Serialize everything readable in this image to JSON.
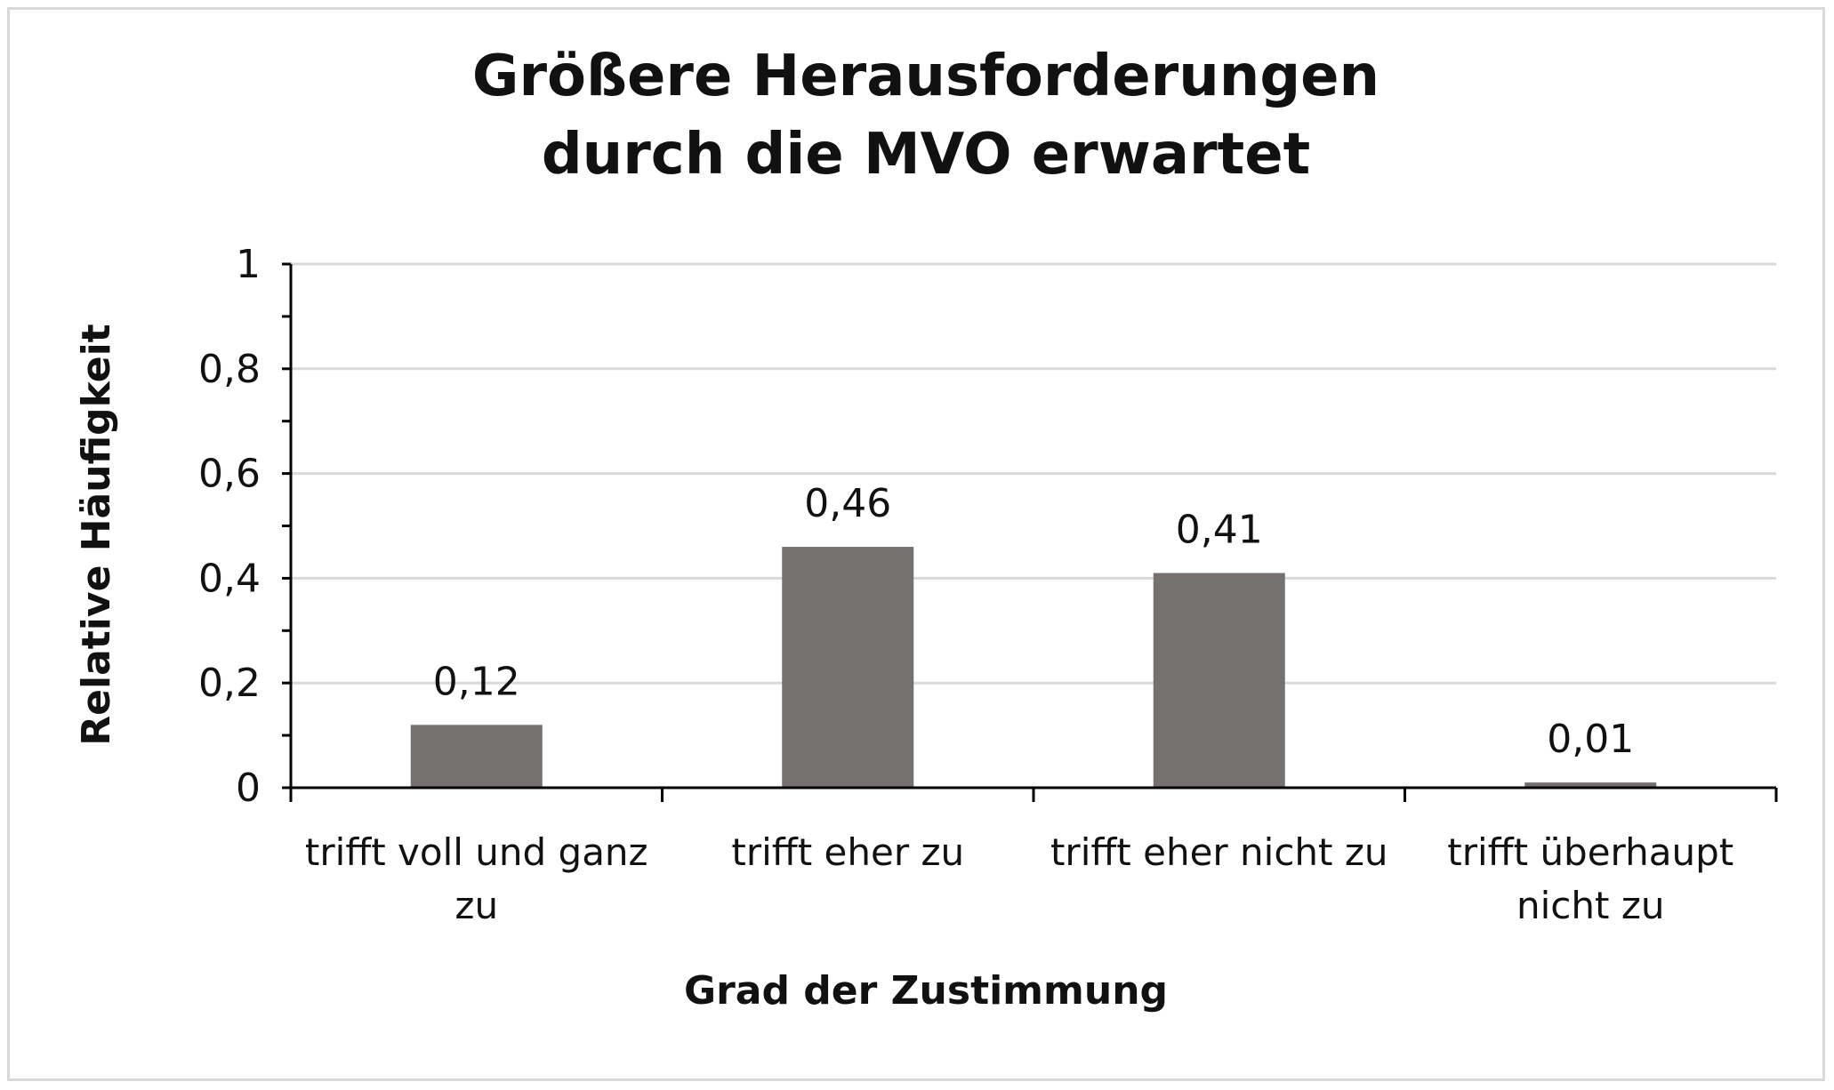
{
  "chart_data": {
    "type": "bar",
    "title": [
      "Größere Herausforderungen",
      "durch die MVO erwartet"
    ],
    "xlabel": "Grad der Zustimmung",
    "ylabel": "Relative Häufigkeit",
    "categories": [
      [
        "trifft voll und ganz",
        "zu"
      ],
      [
        "trifft eher zu"
      ],
      [
        "trifft eher nicht zu"
      ],
      [
        "trifft überhaupt",
        "nicht zu"
      ]
    ],
    "values": [
      0.12,
      0.46,
      0.41,
      0.01
    ],
    "value_labels": [
      "0,12",
      "0,46",
      "0,41",
      "0,01"
    ],
    "ylim": [
      0,
      1
    ],
    "yticks": [
      0,
      0.2,
      0.4,
      0.6,
      0.8,
      1
    ],
    "ytick_labels": [
      "0",
      "0,2",
      "0,4",
      "0,6",
      "0,8",
      "1"
    ],
    "grid": true,
    "legend": "none",
    "colors": {
      "bar": "#767171",
      "grid": "#d9d9d9",
      "axis": "#000000"
    }
  }
}
